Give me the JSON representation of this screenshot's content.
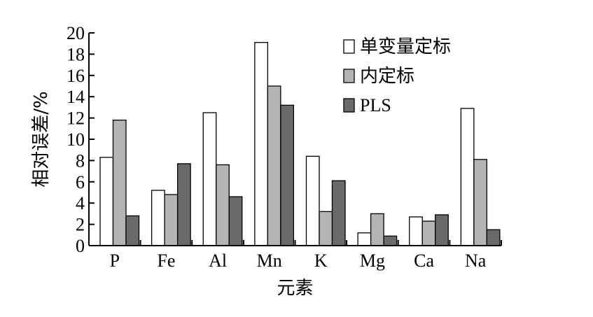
{
  "chart_data": {
    "type": "bar",
    "title": "",
    "xlabel": "元素",
    "ylabel": "相对误差/%",
    "ylim": [
      0,
      20
    ],
    "yticks": [
      "0",
      "2",
      "4",
      "6",
      "8",
      "10",
      "12",
      "14",
      "16",
      "18",
      "20"
    ],
    "categories": [
      "P",
      "Fe",
      "Al",
      "Mn",
      "K",
      "Mg",
      "Ca",
      "Na"
    ],
    "series": [
      {
        "name": "单变量定标",
        "color": "#ffffff",
        "values": [
          8.3,
          5.2,
          12.5,
          19.1,
          8.4,
          1.2,
          2.7,
          12.9
        ]
      },
      {
        "name": "内定标",
        "color": "#b4b4b4",
        "values": [
          11.8,
          4.8,
          7.6,
          15.0,
          3.2,
          3.0,
          2.3,
          8.1
        ]
      },
      {
        "name": "PLS",
        "color": "#6a6a6a",
        "values": [
          2.8,
          7.7,
          4.6,
          13.2,
          6.1,
          0.9,
          2.9,
          1.5
        ]
      }
    ],
    "grid": false,
    "legend_position": "top-right"
  }
}
